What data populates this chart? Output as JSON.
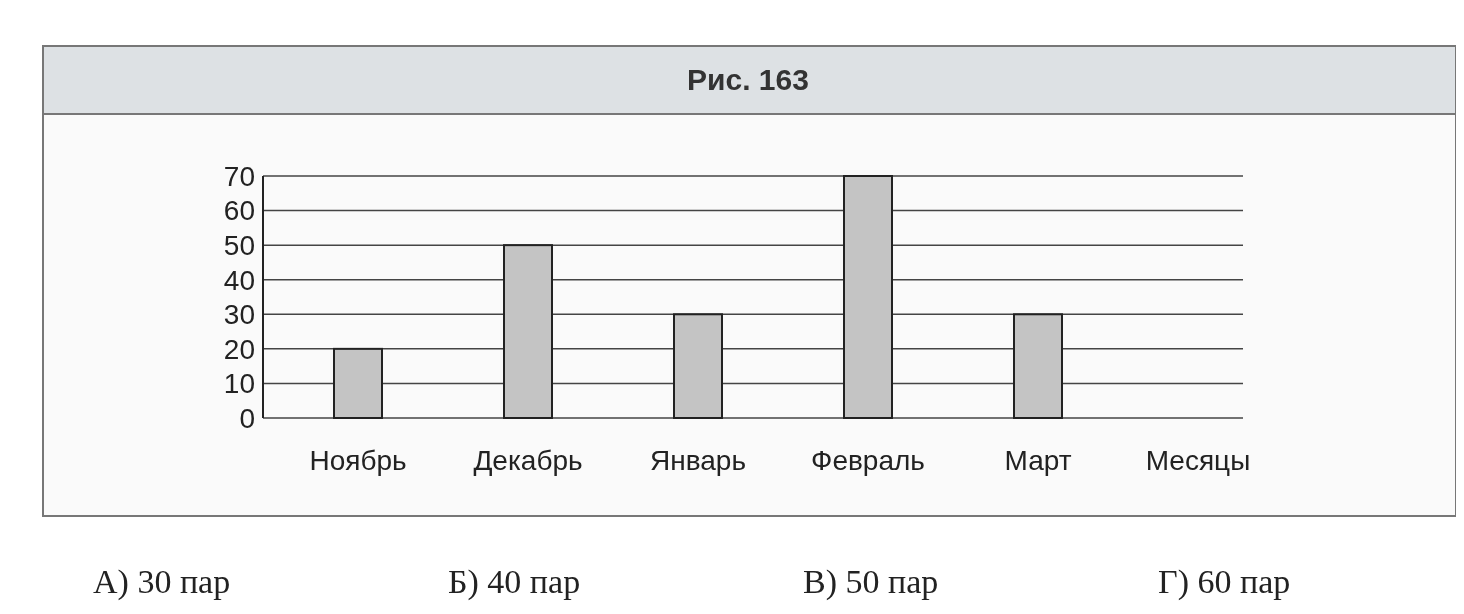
{
  "chart_data": {
    "type": "bar",
    "title": "Рис. 163",
    "xlabel": "Месяцы",
    "categories": [
      "Ноябрь",
      "Декабрь",
      "Январь",
      "Февраль",
      "Март"
    ],
    "values": [
      20,
      50,
      30,
      70,
      30
    ],
    "color": "#c4c4c4",
    "ylim": [
      0,
      70
    ],
    "yticks": [
      0,
      10,
      20,
      30,
      40,
      50,
      60,
      70
    ],
    "grid": "y",
    "annotations": [
      "А) 30 пар",
      "Б) 40 пар",
      "В) 50 пар",
      "Г) 60 пар"
    ]
  }
}
